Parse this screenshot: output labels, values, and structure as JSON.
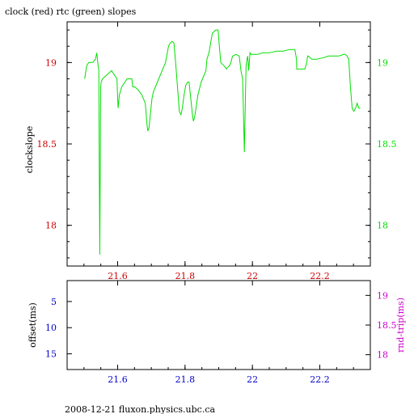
{
  "title": "clock (red) rtc (green) slopes",
  "footer": "2008-12-21 fluxon.physics.ubc.ca",
  "colors": {
    "clock": "#cc0000",
    "rtc": "#00e000",
    "offset": "#0000cc",
    "roundtrip": "#cc00cc",
    "frame": "#000000"
  },
  "chart_data": [
    {
      "type": "line",
      "title": "clock (red) rtc (green) slopes",
      "ylabel": "clockslope",
      "xlim": [
        21.45,
        22.35
      ],
      "ylim": [
        17.75,
        19.25
      ],
      "right_ylim": [
        17.75,
        19.25
      ],
      "x_ticks": [
        "21.6",
        "21.8",
        "22",
        "22.2"
      ],
      "x_tick_values": [
        21.6,
        21.8,
        22.0,
        22.2
      ],
      "y_ticks_left": [
        "18",
        "18.5",
        "19"
      ],
      "y_tick_values_left": [
        18,
        18.5,
        19
      ],
      "y_ticks_right": [
        "18",
        "18.5",
        "19"
      ],
      "y_tick_values_right": [
        18,
        18.5,
        19
      ],
      "series": [
        {
          "color": "#00e000",
          "x": [
            21.502,
            21.508,
            21.514,
            21.526,
            21.534,
            21.538,
            21.541,
            21.544,
            21.5455,
            21.547,
            21.5495,
            21.551,
            21.555,
            21.566,
            21.582,
            21.598,
            21.6,
            21.6015,
            21.605,
            21.612,
            21.628,
            21.642,
            21.645,
            21.651,
            21.662,
            21.672,
            21.682,
            21.687,
            21.6895,
            21.693,
            21.698,
            21.702,
            21.706,
            21.712,
            21.722,
            21.732,
            21.742,
            21.751,
            21.756,
            21.762,
            21.767,
            21.772,
            21.783,
            21.788,
            21.792,
            21.797,
            21.802,
            21.808,
            21.812,
            21.822,
            21.825,
            21.828,
            21.834,
            21.838,
            21.848,
            21.852,
            21.862,
            21.865,
            21.871,
            21.881,
            21.891,
            21.898,
            21.902,
            21.906,
            21.916,
            21.923,
            21.926,
            21.932,
            21.936,
            21.941,
            21.951,
            21.961,
            21.966,
            21.971,
            21.976,
            21.981,
            21.984,
            21.986,
            21.9875,
            21.989,
            21.9915,
            21.993,
            21.996,
            22.001,
            22.006,
            22.016,
            22.031,
            22.051,
            22.071,
            22.091,
            22.111,
            22.126,
            22.131,
            22.1315,
            22.136,
            22.146,
            22.156,
            22.161,
            22.164,
            22.166,
            22.176,
            22.191,
            22.211,
            22.226,
            22.241,
            22.256,
            22.271,
            22.276,
            22.281,
            22.286,
            22.291,
            22.296,
            22.301,
            22.306,
            22.311,
            22.316,
            22.32
          ],
          "y": [
            18.9,
            18.98,
            19.0,
            19.0,
            19.02,
            19.06,
            19.0,
            18.95,
            18.35,
            17.82,
            18.85,
            18.88,
            18.9,
            18.92,
            18.95,
            18.9,
            18.78,
            18.72,
            18.8,
            18.85,
            18.9,
            18.9,
            18.85,
            18.85,
            18.83,
            18.8,
            18.75,
            18.62,
            18.58,
            18.6,
            18.7,
            18.78,
            18.82,
            18.85,
            18.9,
            18.95,
            19.0,
            19.1,
            19.12,
            19.13,
            19.12,
            19.0,
            18.7,
            18.68,
            18.72,
            18.8,
            18.86,
            18.88,
            18.88,
            18.68,
            18.64,
            18.66,
            18.74,
            18.8,
            18.88,
            18.9,
            18.95,
            19.02,
            19.06,
            19.18,
            19.2,
            19.2,
            19.1,
            19.0,
            18.98,
            18.96,
            18.97,
            18.98,
            19.0,
            19.04,
            19.05,
            19.04,
            18.95,
            18.9,
            18.45,
            18.98,
            19.02,
            19.04,
            19.0,
            18.95,
            19.02,
            19.06,
            19.05,
            19.05,
            19.05,
            19.05,
            19.06,
            19.06,
            19.07,
            19.07,
            19.08,
            19.08,
            19.02,
            18.96,
            18.96,
            18.96,
            18.96,
            19.0,
            19.04,
            19.04,
            19.02,
            19.02,
            19.03,
            19.04,
            19.04,
            19.04,
            19.05,
            19.05,
            19.04,
            19.02,
            18.85,
            18.72,
            18.7,
            18.72,
            18.75,
            18.72,
            18.72
          ]
        }
      ]
    },
    {
      "type": "line",
      "ylabel": "offset(ms)",
      "right_ylabel": "rnd-trip(ms)",
      "xlim": [
        21.45,
        22.35
      ],
      "ylim": [
        18,
        1
      ],
      "right_ylim": [
        17.75,
        19.25
      ],
      "x_ticks": [
        "21.6",
        "21.8",
        "22",
        "22.2"
      ],
      "x_tick_values": [
        21.6,
        21.8,
        22.0,
        22.2
      ],
      "y_ticks_left": [
        "5",
        "10",
        "15"
      ],
      "y_tick_values_left": [
        5,
        10,
        15
      ],
      "y_ticks_right": [
        "18",
        "18.5",
        "19"
      ],
      "y_tick_values_right": [
        18,
        18.5,
        19
      ],
      "series": []
    }
  ]
}
